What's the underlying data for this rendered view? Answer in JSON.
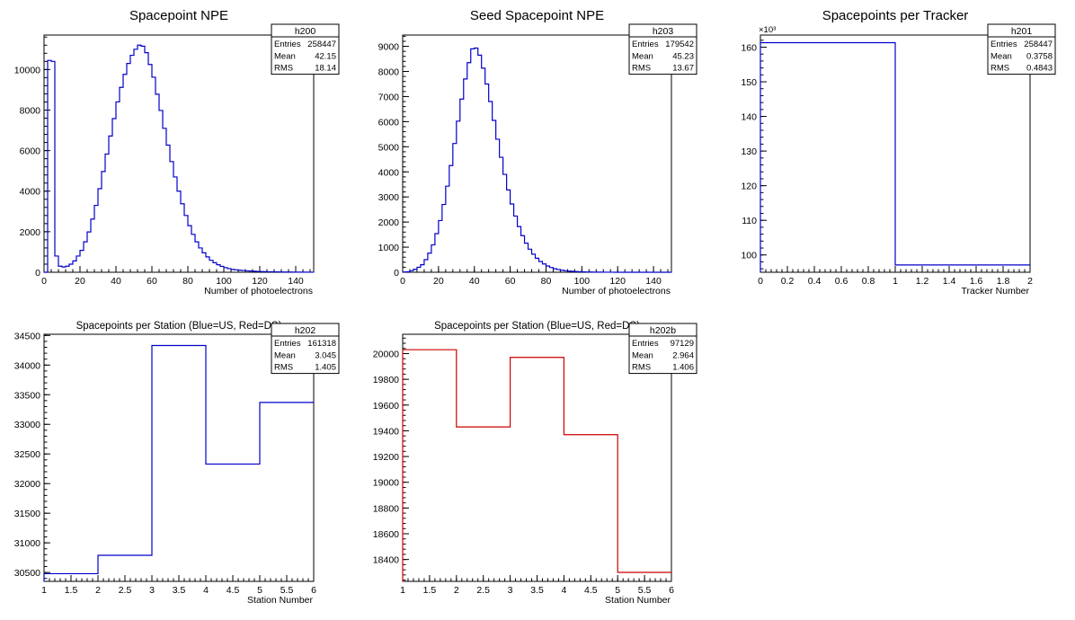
{
  "chart_data": [
    {
      "id": "h200",
      "type": "histogram",
      "title": "Spacepoint NPE",
      "xlabel": "Number of photoelectrons",
      "ylabel": "",
      "xlim": [
        0,
        150
      ],
      "ylim": [
        0,
        11700
      ],
      "xticks": [
        0,
        20,
        40,
        60,
        80,
        100,
        120,
        140
      ],
      "yticks": [
        0,
        2000,
        4000,
        6000,
        8000,
        10000
      ],
      "exponent_label": "",
      "line_color": "#0000cc",
      "bins": {
        "start": 0,
        "width": 2,
        "values": [
          0,
          10450,
          10400,
          800,
          300,
          260,
          300,
          400,
          560,
          800,
          1080,
          1500,
          1990,
          2620,
          3300,
          4120,
          4970,
          5830,
          6720,
          7580,
          8400,
          9120,
          9760,
          10300,
          10700,
          11000,
          11200,
          11150,
          10830,
          10250,
          9620,
          8780,
          7980,
          7100,
          6270,
          5460,
          4700,
          4000,
          3380,
          2800,
          2300,
          1870,
          1500,
          1200,
          960,
          760,
          590,
          470,
          370,
          290,
          230,
          180,
          140,
          120,
          100,
          85,
          70,
          60,
          50,
          42,
          36,
          30,
          26,
          22,
          19,
          16,
          14,
          12,
          10,
          8,
          7,
          6,
          5,
          4,
          3
        ]
      },
      "stats": {
        "name": "h200",
        "rows": [
          [
            "Entries",
            "258447"
          ],
          [
            "Mean",
            "42.15"
          ],
          [
            "RMS",
            "18.14"
          ]
        ]
      }
    },
    {
      "id": "h203",
      "type": "histogram",
      "title": "Seed Spacepoint NPE",
      "xlabel": "Number of photoelectrons",
      "ylabel": "",
      "xlim": [
        0,
        150
      ],
      "ylim": [
        0,
        9450
      ],
      "xticks": [
        0,
        20,
        40,
        60,
        80,
        100,
        120,
        140
      ],
      "yticks": [
        0,
        1000,
        2000,
        3000,
        4000,
        5000,
        6000,
        7000,
        8000,
        9000
      ],
      "exponent_label": "",
      "line_color": "#0000cc",
      "bins": {
        "start": 0,
        "width": 2,
        "values": [
          10,
          20,
          60,
          120,
          200,
          300,
          500,
          760,
          1090,
          1540,
          2060,
          2700,
          3430,
          4250,
          5130,
          6020,
          6900,
          7700,
          8350,
          8900,
          8930,
          8650,
          8130,
          7500,
          6800,
          6050,
          5300,
          4580,
          3900,
          3280,
          2720,
          2240,
          1820,
          1460,
          1160,
          920,
          720,
          560,
          430,
          330,
          250,
          190,
          140,
          110,
          80,
          60,
          45,
          35,
          27,
          20,
          15,
          11,
          8,
          6,
          5,
          4,
          3,
          2,
          2,
          1,
          1,
          1,
          1,
          1,
          0,
          0,
          0,
          0,
          0,
          0,
          0,
          0,
          0,
          0,
          0
        ]
      },
      "stats": {
        "name": "h203",
        "rows": [
          [
            "Entries",
            "179542"
          ],
          [
            "Mean",
            "45.23"
          ],
          [
            "RMS",
            "13.67"
          ]
        ]
      }
    },
    {
      "id": "h201",
      "type": "histogram",
      "title": "Spacepoints per Tracker",
      "xlabel": "Tracker Number",
      "ylabel": "",
      "xlim": [
        0,
        2
      ],
      "ylim": [
        95,
        163.5
      ],
      "xticks": [
        0,
        0.2,
        0.4,
        0.6,
        0.8,
        1,
        1.2,
        1.4,
        1.6,
        1.8,
        2
      ],
      "yticks": [
        100,
        110,
        120,
        130,
        140,
        150,
        160
      ],
      "exponent_label": "×10³",
      "line_color": "#0000cc",
      "bins": {
        "start": 0,
        "width": 1,
        "values": [
          161.3,
          97.1
        ]
      },
      "stats": {
        "name": "h201",
        "rows": [
          [
            "Entries",
            "258447"
          ],
          [
            "Mean",
            "0.3758"
          ],
          [
            "RMS",
            "0.4843"
          ]
        ]
      }
    },
    {
      "id": "h202",
      "type": "histogram",
      "title": "Spacepoints per Station (Blue=US, Red=DS)",
      "xlabel": "Station Number",
      "ylabel": "",
      "xlim": [
        1,
        6
      ],
      "ylim": [
        30350,
        34520
      ],
      "xticks": [
        1,
        1.5,
        2,
        2.5,
        3,
        3.5,
        4,
        4.5,
        5,
        5.5,
        6
      ],
      "yticks": [
        30500,
        31000,
        31500,
        32000,
        32500,
        33000,
        33500,
        34000,
        34500
      ],
      "exponent_label": "",
      "line_color": "#0000cc",
      "bins": {
        "start": 1,
        "width": 1,
        "values": [
          30480,
          30790,
          34330,
          32330,
          33370
        ]
      },
      "stats": {
        "name": "h202",
        "rows": [
          [
            "Entries",
            "161318"
          ],
          [
            "Mean",
            "3.045"
          ],
          [
            "RMS",
            "1.405"
          ]
        ]
      }
    },
    {
      "id": "h202b",
      "type": "histogram",
      "title": "Spacepoints per Station (Blue=US, Red=DS)",
      "xlabel": "Station Number",
      "ylabel": "",
      "xlim": [
        1,
        6
      ],
      "ylim": [
        18230,
        20150
      ],
      "xticks": [
        1,
        1.5,
        2,
        2.5,
        3,
        3.5,
        4,
        4.5,
        5,
        5.5,
        6
      ],
      "yticks": [
        18400,
        18600,
        18800,
        19000,
        19200,
        19400,
        19600,
        19800,
        20000
      ],
      "exponent_label": "",
      "line_color": "#cc0000",
      "bins": {
        "start": 1,
        "width": 1,
        "values": [
          20030,
          19430,
          19970,
          19370,
          18300
        ]
      },
      "stats": {
        "name": "h202b",
        "rows": [
          [
            "Entries",
            "97129"
          ],
          [
            "Mean",
            "2.964"
          ],
          [
            "RMS",
            "1.406"
          ]
        ]
      }
    }
  ]
}
